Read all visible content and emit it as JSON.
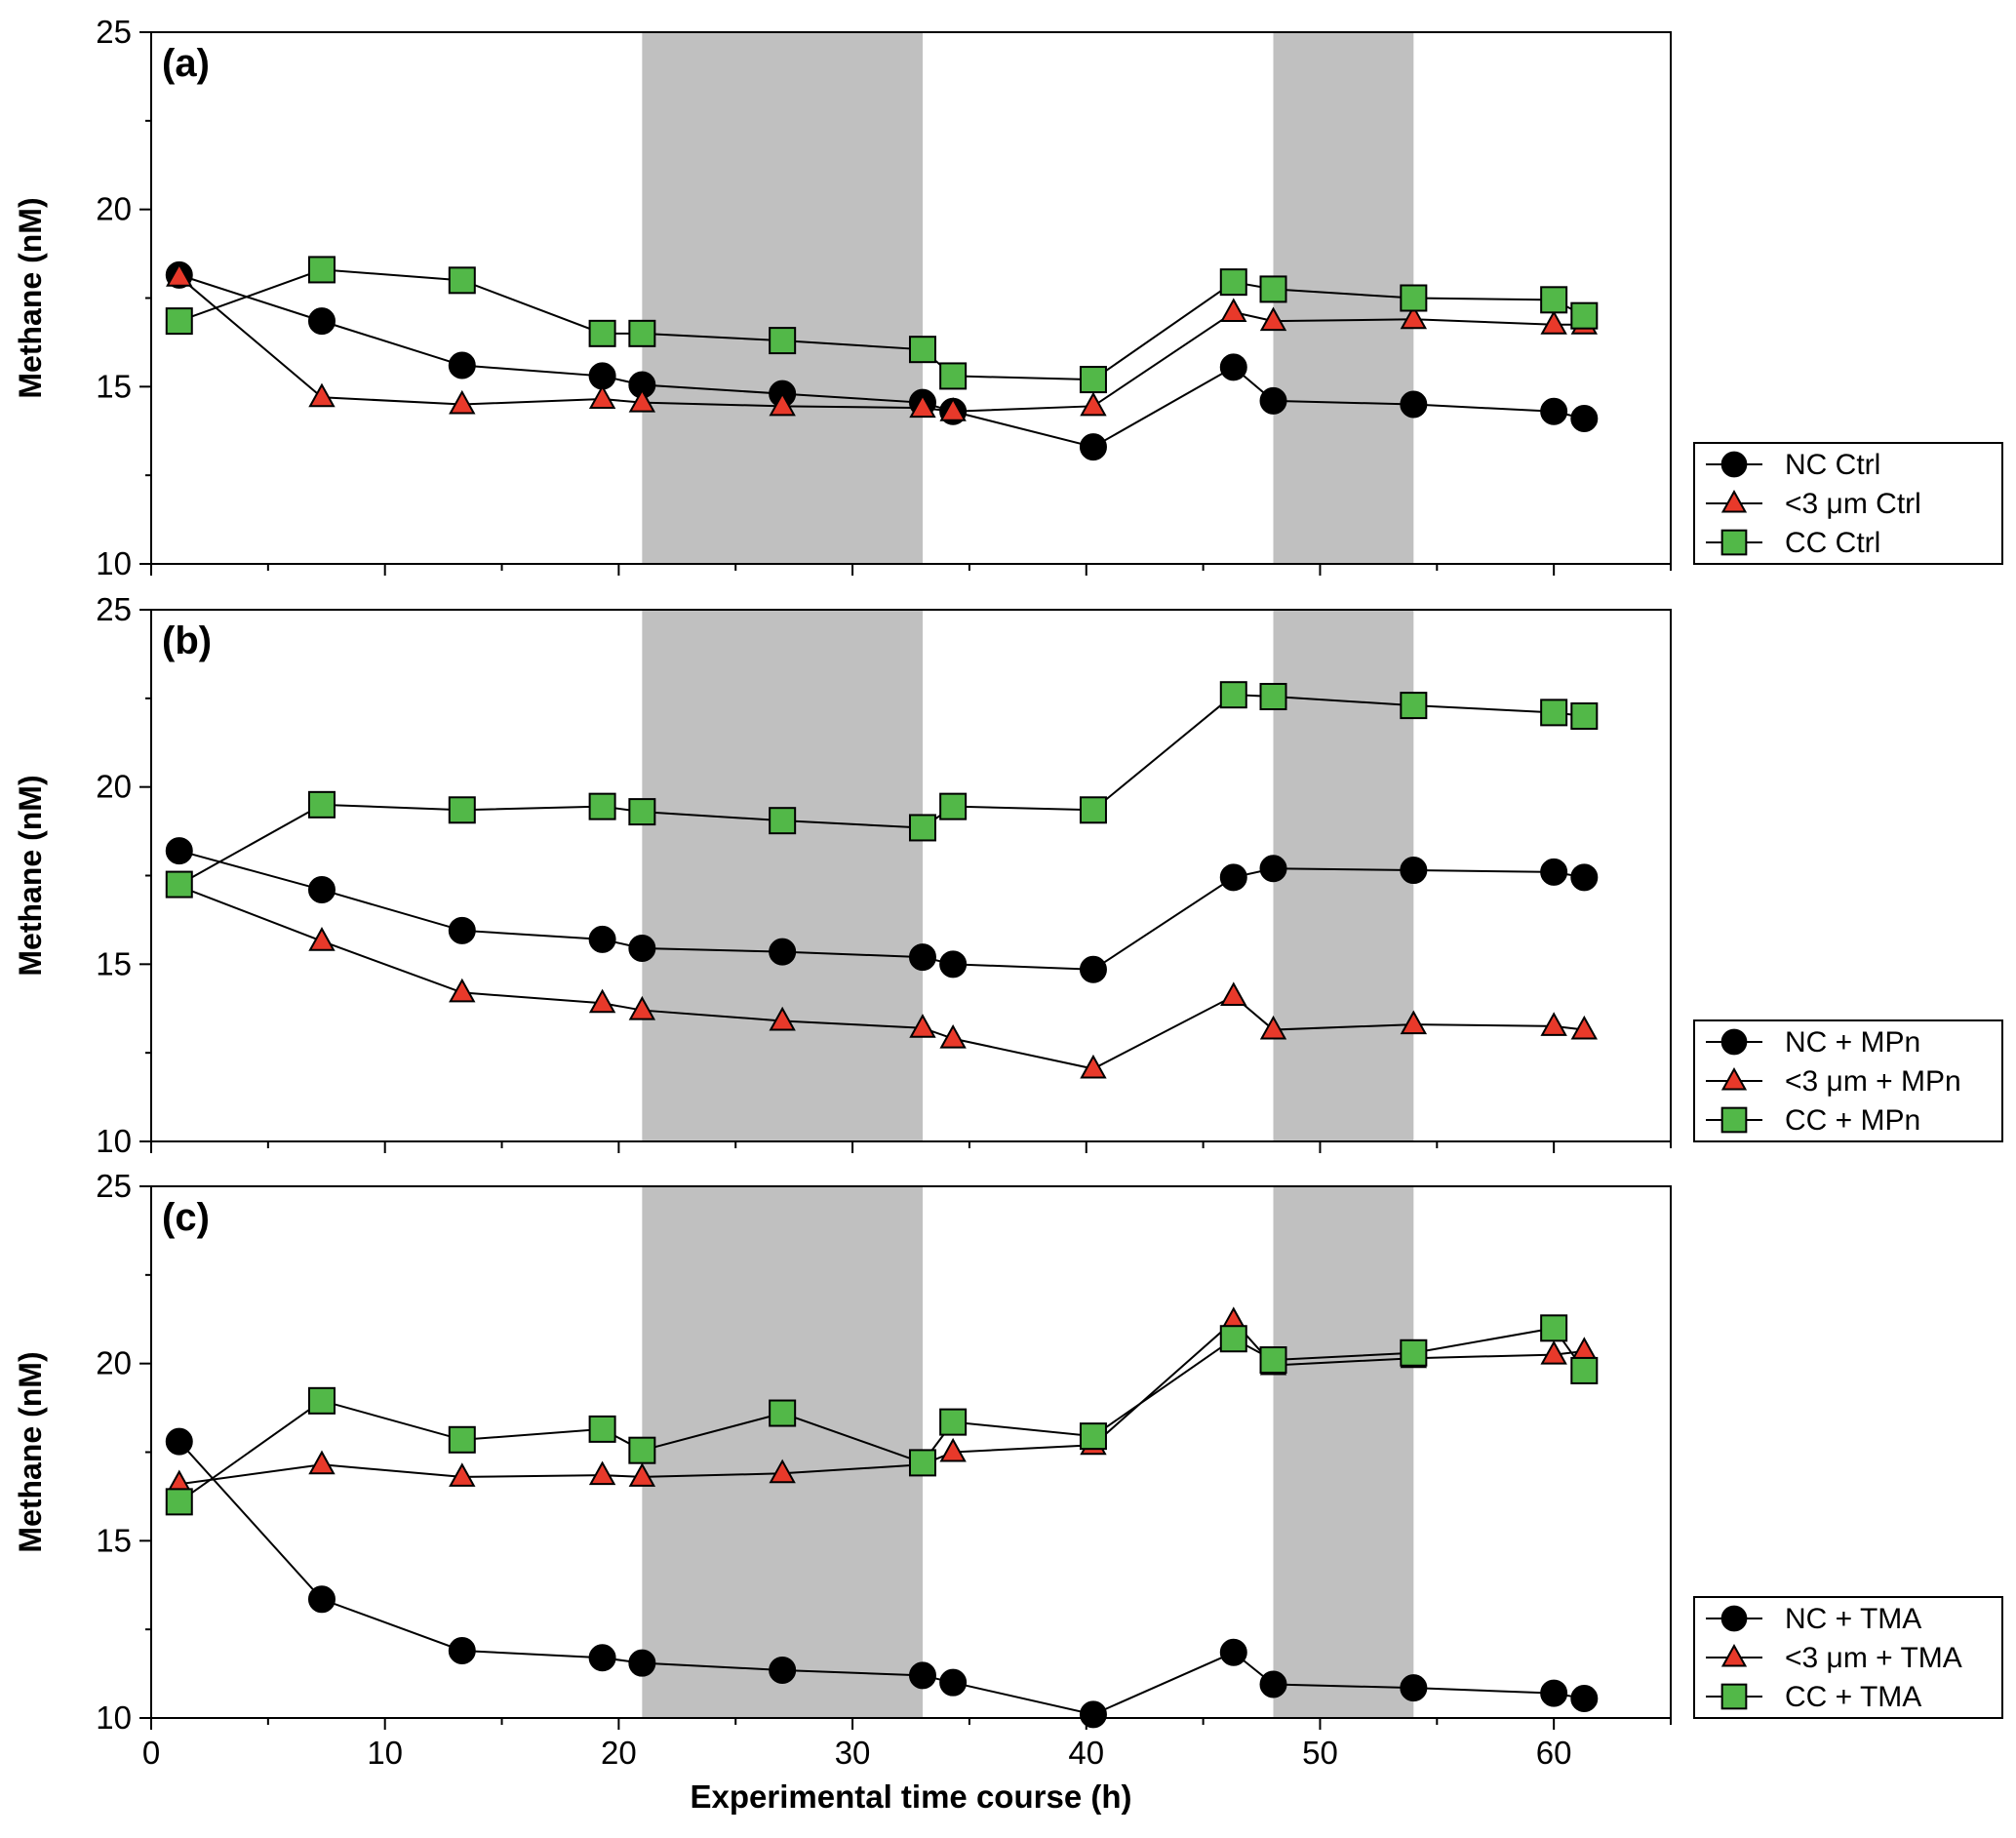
{
  "figure": {
    "xlabel": "Experimental time course (h)",
    "xlim": [
      0,
      65
    ],
    "xticks": [
      0,
      10,
      20,
      30,
      40,
      50,
      60
    ],
    "colors": {
      "nc": "#000000",
      "lt3": "#e8392a",
      "cc": "#52b848",
      "shade": "#c0c0c0",
      "outline": "#000000"
    },
    "dark_periods": [
      [
        21,
        33
      ],
      [
        48,
        54
      ]
    ]
  },
  "chart_data": [
    {
      "type": "line",
      "panel_label": "(a)",
      "ylabel": "Methane (nM)",
      "ylim": [
        10,
        25
      ],
      "yticks": [
        10,
        15,
        20,
        25
      ],
      "legend_position": "right-bottom",
      "series": [
        {
          "name": "NC Ctrl",
          "marker": "circle",
          "color_key": "nc",
          "x": [
            1.2,
            7.3,
            13.3,
            19.3,
            21.0,
            27.0,
            33.0,
            34.3,
            40.3,
            46.3,
            48.0,
            54.0,
            60.0,
            61.3
          ],
          "y": [
            18.15,
            16.85,
            15.6,
            15.3,
            15.05,
            14.8,
            14.55,
            14.3,
            13.3,
            15.55,
            14.6,
            14.5,
            14.3,
            14.1
          ]
        },
        {
          "name": "<3 μm Ctrl",
          "marker": "triangle",
          "color_key": "lt3",
          "x": [
            1.2,
            7.3,
            13.3,
            19.3,
            21.0,
            27.0,
            33.0,
            34.3,
            40.3,
            46.3,
            48.0,
            54.0,
            60.0,
            61.3
          ],
          "y": [
            18.1,
            14.7,
            14.5,
            14.65,
            14.55,
            14.45,
            14.4,
            14.3,
            14.45,
            17.1,
            16.85,
            16.9,
            16.75,
            16.75
          ]
        },
        {
          "name": "CC Ctrl",
          "marker": "square",
          "color_key": "cc",
          "x": [
            1.2,
            7.3,
            13.3,
            19.3,
            21.0,
            27.0,
            33.0,
            34.3,
            40.3,
            46.3,
            48.0,
            54.0,
            60.0,
            61.3
          ],
          "y": [
            16.85,
            18.3,
            18.0,
            16.5,
            16.5,
            16.3,
            16.05,
            15.3,
            15.2,
            17.95,
            17.75,
            17.5,
            17.45,
            17.0
          ]
        }
      ]
    },
    {
      "type": "line",
      "panel_label": "(b)",
      "ylabel": "Methane (nM)",
      "ylim": [
        10,
        25
      ],
      "yticks": [
        10,
        15,
        20,
        25
      ],
      "legend_position": "right-bottom",
      "series": [
        {
          "name": "NC + MPn",
          "marker": "circle",
          "color_key": "nc",
          "x": [
            1.2,
            7.3,
            13.3,
            19.3,
            21.0,
            27.0,
            33.0,
            34.3,
            40.3,
            46.3,
            48.0,
            54.0,
            60.0,
            61.3
          ],
          "y": [
            18.2,
            17.1,
            15.95,
            15.7,
            15.45,
            15.35,
            15.2,
            15.0,
            14.85,
            17.45,
            17.7,
            17.65,
            17.6,
            17.45
          ]
        },
        {
          "name": "<3 μm + MPn",
          "marker": "triangle",
          "color_key": "lt3",
          "x": [
            1.2,
            7.3,
            13.3,
            19.3,
            21.0,
            27.0,
            33.0,
            34.3,
            40.3,
            46.3,
            48.0,
            54.0,
            60.0,
            61.3
          ],
          "y": [
            17.2,
            15.65,
            14.2,
            13.9,
            13.7,
            13.4,
            13.2,
            12.9,
            12.05,
            14.1,
            13.15,
            13.3,
            13.25,
            13.15
          ]
        },
        {
          "name": "CC + MPn",
          "marker": "square",
          "color_key": "cc",
          "x": [
            1.2,
            7.3,
            13.3,
            19.3,
            21.0,
            27.0,
            33.0,
            34.3,
            40.3,
            46.3,
            48.0,
            54.0,
            60.0,
            61.3
          ],
          "y": [
            17.25,
            19.5,
            19.35,
            19.45,
            19.3,
            19.05,
            18.85,
            19.45,
            19.35,
            22.6,
            22.55,
            22.3,
            22.1,
            22.0
          ]
        }
      ]
    },
    {
      "type": "line",
      "panel_label": "(c)",
      "ylabel": "Methane (nM)",
      "ylim": [
        10,
        25
      ],
      "yticks": [
        10,
        15,
        20,
        25
      ],
      "legend_position": "right-bottom",
      "series": [
        {
          "name": "NC + TMA",
          "marker": "circle",
          "color_key": "nc",
          "x": [
            1.2,
            7.3,
            13.3,
            19.3,
            21.0,
            27.0,
            33.0,
            34.3,
            40.3,
            46.3,
            48.0,
            54.0,
            60.0,
            61.3
          ],
          "y": [
            17.8,
            13.35,
            11.9,
            11.7,
            11.55,
            11.35,
            11.2,
            11.0,
            10.1,
            11.85,
            10.95,
            10.85,
            10.7,
            10.55
          ]
        },
        {
          "name": "<3 μm + TMA",
          "marker": "triangle",
          "color_key": "lt3",
          "x": [
            1.2,
            7.3,
            13.3,
            19.3,
            21.0,
            27.0,
            33.0,
            34.3,
            40.3,
            46.3,
            48.0,
            54.0,
            60.0,
            61.3
          ],
          "y": [
            16.6,
            17.15,
            16.8,
            16.85,
            16.8,
            16.9,
            17.15,
            17.5,
            17.7,
            21.2,
            19.95,
            20.15,
            20.25,
            20.35
          ]
        },
        {
          "name": "CC + TMA",
          "marker": "square",
          "color_key": "cc",
          "x": [
            1.2,
            7.3,
            13.3,
            19.3,
            21.0,
            27.0,
            33.0,
            34.3,
            40.3,
            46.3,
            48.0,
            54.0,
            60.0,
            61.3
          ],
          "y": [
            16.1,
            18.95,
            17.85,
            18.15,
            17.55,
            18.6,
            17.2,
            18.35,
            17.95,
            20.7,
            20.1,
            20.3,
            21.0,
            19.8
          ]
        }
      ]
    }
  ]
}
